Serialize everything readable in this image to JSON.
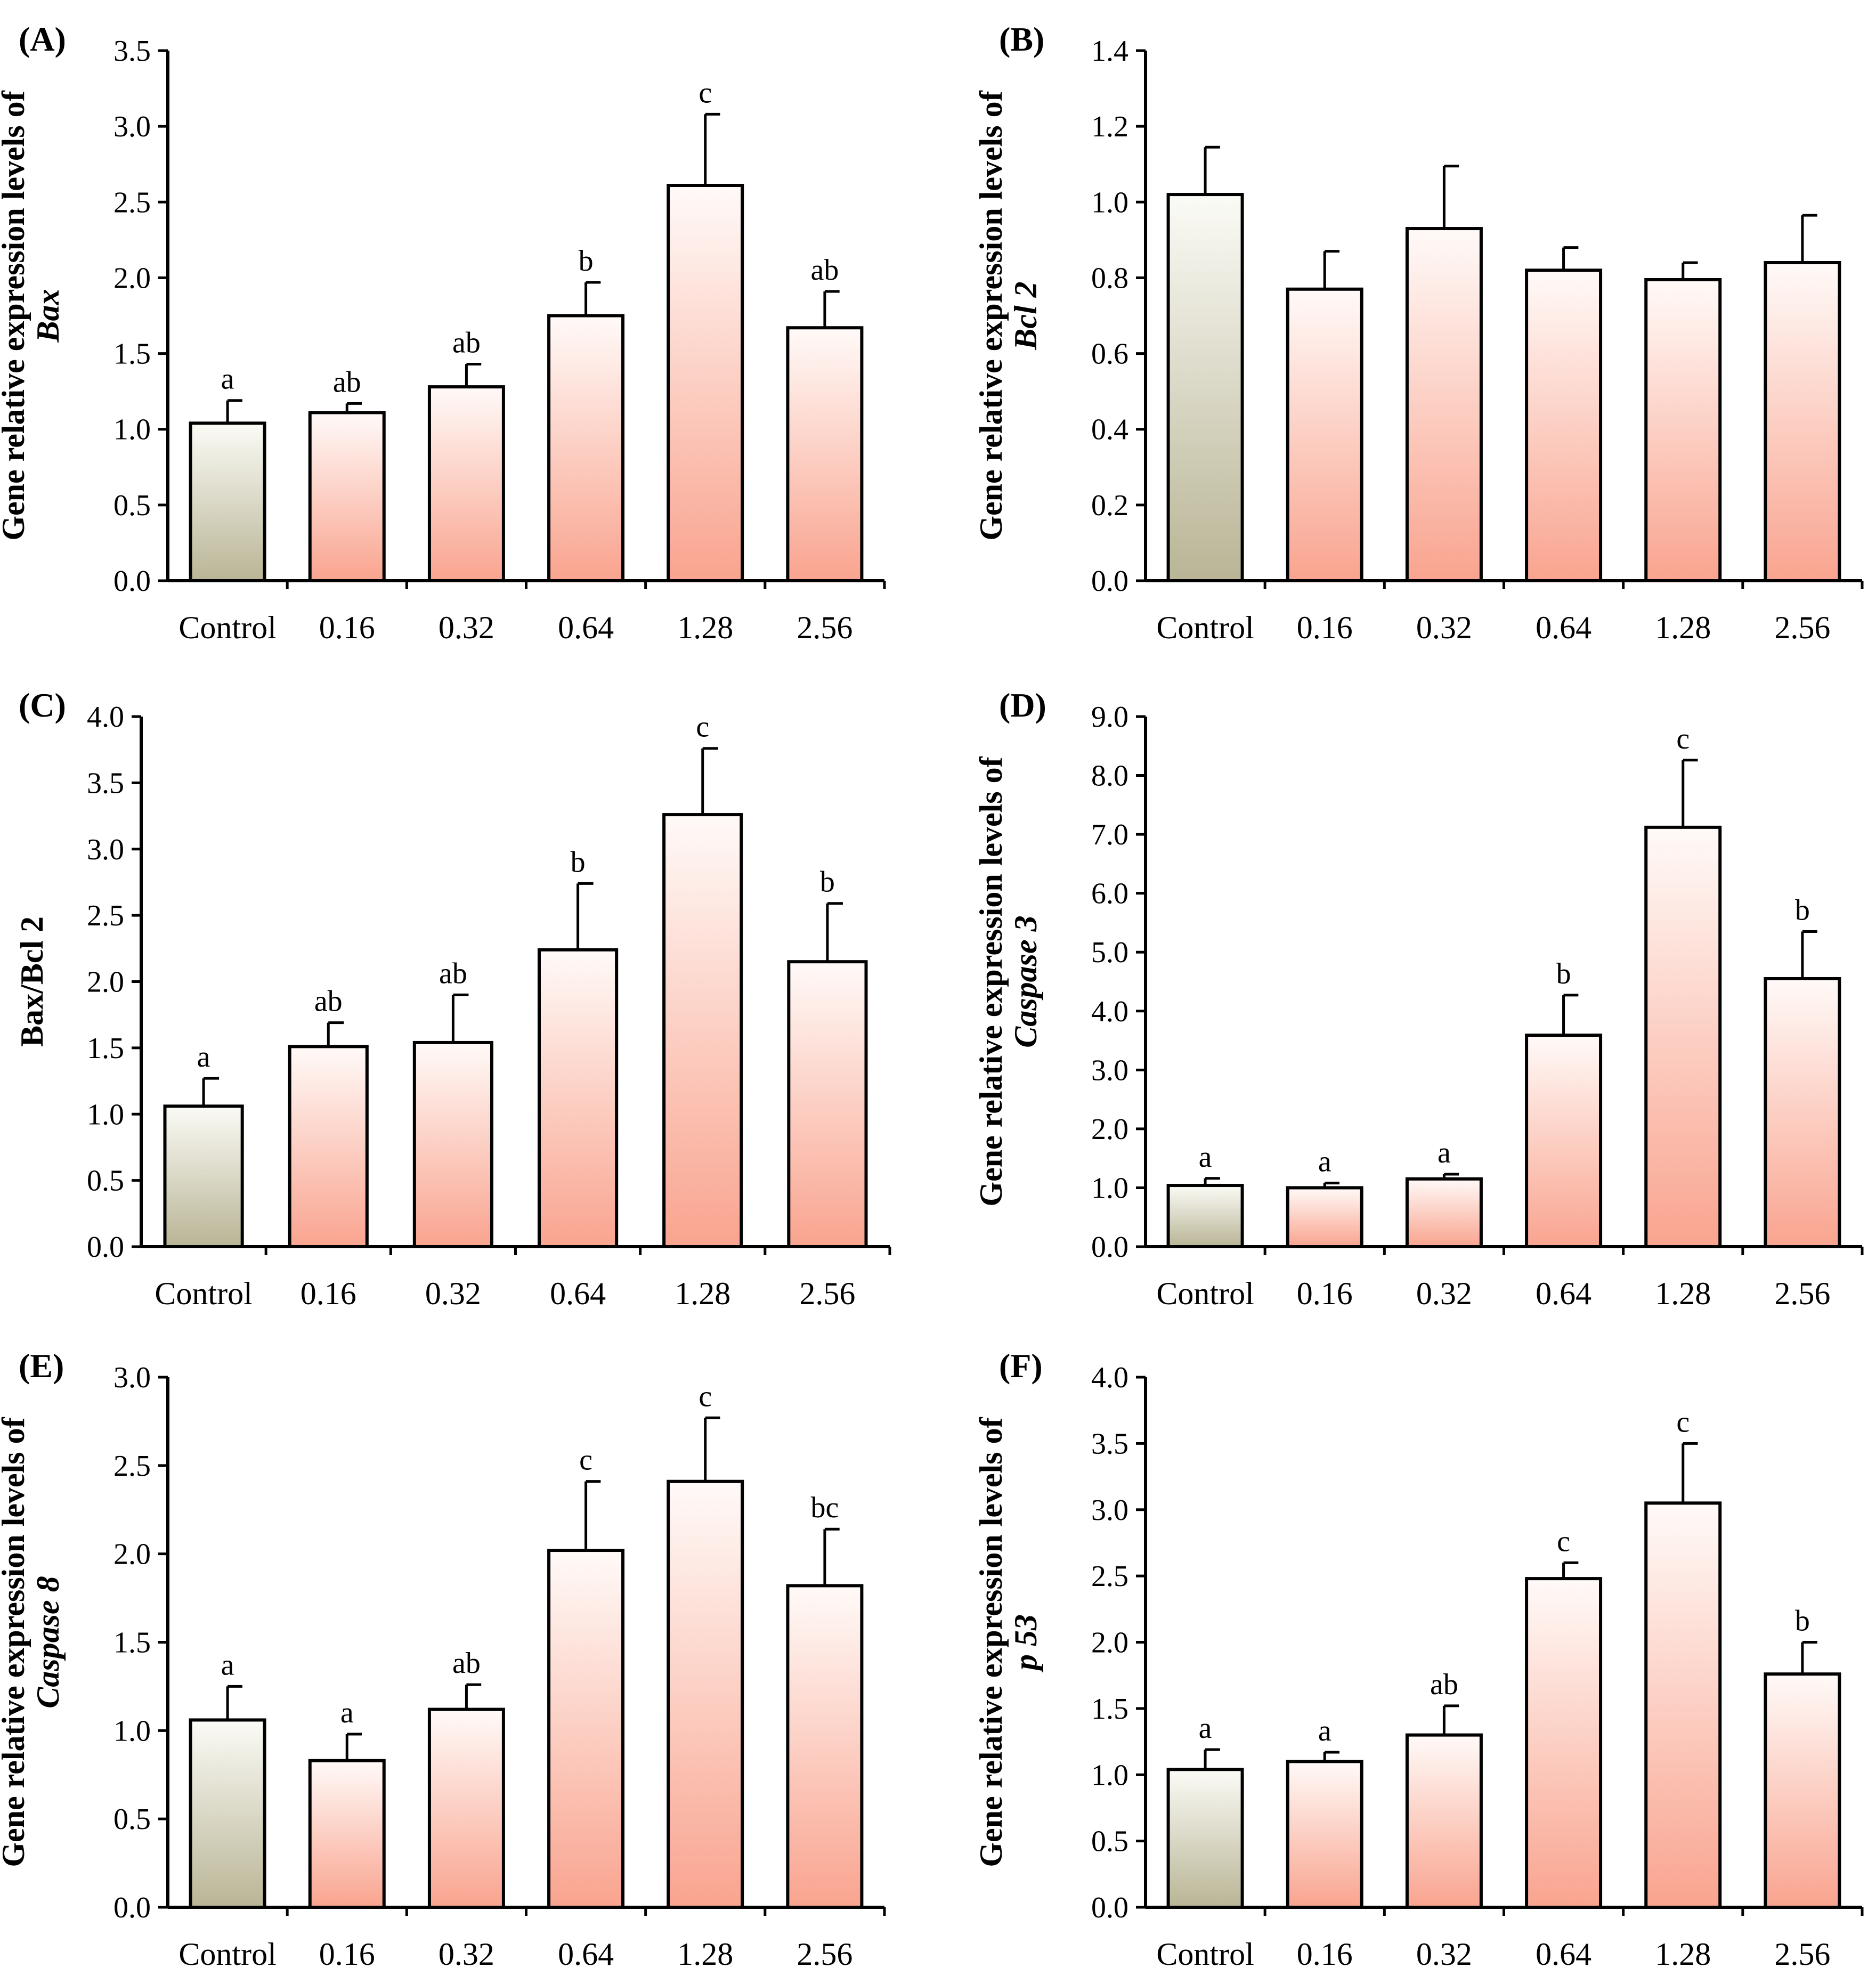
{
  "colors": {
    "control_top": "#fbfbf6",
    "control_bottom": "#b9b596",
    "treat_top": "#fffaf8",
    "treat_bottom": "#f9a48f",
    "stroke": "#000000"
  },
  "chart_data": [
    {
      "type": "bar",
      "panel": "(A)",
      "ylabel": "Gene relative expression levels of",
      "ylabel_gene": "Bax",
      "categories": [
        "Control",
        "0.16",
        "0.32",
        "0.64",
        "1.28",
        "2.56"
      ],
      "values": [
        1.04,
        1.11,
        1.28,
        1.75,
        2.61,
        1.67
      ],
      "errors": [
        0.15,
        0.06,
        0.15,
        0.22,
        0.47,
        0.24
      ],
      "significance": [
        "a",
        "ab",
        "ab",
        "b",
        "c",
        "ab"
      ],
      "ylim": [
        0,
        3.5
      ],
      "ticks": [
        "0.0",
        "0.5",
        "1.0",
        "1.5",
        "2.0",
        "2.5",
        "3.0",
        "3.5"
      ]
    },
    {
      "type": "bar",
      "panel": "(B)",
      "ylabel": "Gene relative expression levels of",
      "ylabel_gene": "Bcl 2",
      "categories": [
        "Control",
        "0.16",
        "0.32",
        "0.64",
        "1.28",
        "2.56"
      ],
      "values": [
        1.02,
        0.77,
        0.93,
        0.82,
        0.795,
        0.84
      ],
      "errors": [
        0.125,
        0.1,
        0.165,
        0.06,
        0.045,
        0.125
      ],
      "significance": [
        "",
        "",
        "",
        "",
        "",
        ""
      ],
      "ylim": [
        0,
        1.4
      ],
      "ticks": [
        "0.0",
        "0.2",
        "0.4",
        "0.6",
        "0.8",
        "1.0",
        "1.2",
        "1.4"
      ]
    },
    {
      "type": "bar",
      "panel": "(C)",
      "ylabel": "Bax/Bcl 2",
      "ylabel_gene": "",
      "categories": [
        "Control",
        "0.16",
        "0.32",
        "0.64",
        "1.28",
        "2.56"
      ],
      "values": [
        1.06,
        1.51,
        1.54,
        2.24,
        3.26,
        2.15
      ],
      "errors": [
        0.21,
        0.18,
        0.36,
        0.5,
        0.5,
        0.44
      ],
      "significance": [
        "a",
        "ab",
        "ab",
        "b",
        "c",
        "b"
      ],
      "ylim": [
        0,
        4.0
      ],
      "ticks": [
        "0.0",
        "0.5",
        "1.0",
        "1.5",
        "2.0",
        "2.5",
        "3.0",
        "3.5",
        "4.0"
      ]
    },
    {
      "type": "bar",
      "panel": "(D)",
      "ylabel": "Gene relative expression levels of",
      "ylabel_gene": "Caspase 3",
      "categories": [
        "Control",
        "0.16",
        "0.32",
        "0.64",
        "1.28",
        "2.56"
      ],
      "values": [
        1.04,
        1.0,
        1.15,
        3.59,
        7.12,
        4.55
      ],
      "errors": [
        0.12,
        0.08,
        0.08,
        0.68,
        1.14,
        0.8
      ],
      "significance": [
        "a",
        "a",
        "a",
        "b",
        "c",
        "b"
      ],
      "ylim": [
        0,
        9.0
      ],
      "ticks": [
        "0.0",
        "1.0",
        "2.0",
        "3.0",
        "4.0",
        "5.0",
        "6.0",
        "7.0",
        "8.0",
        "9.0"
      ]
    },
    {
      "type": "bar",
      "panel": "(E)",
      "ylabel": "Gene relative expression levels of",
      "ylabel_gene": "Caspase 8",
      "categories": [
        "Control",
        "0.16",
        "0.32",
        "0.64",
        "1.28",
        "2.56"
      ],
      "values": [
        1.06,
        0.83,
        1.12,
        2.02,
        2.41,
        1.82
      ],
      "errors": [
        0.19,
        0.15,
        0.14,
        0.39,
        0.36,
        0.32
      ],
      "significance": [
        "a",
        "a",
        "ab",
        "c",
        "c",
        "bc"
      ],
      "ylim": [
        0,
        3.0
      ],
      "ticks": [
        "0.0",
        "0.5",
        "1.0",
        "1.5",
        "2.0",
        "2.5",
        "3.0"
      ]
    },
    {
      "type": "bar",
      "panel": "(F)",
      "ylabel": "Gene relative expression levels of",
      "ylabel_gene": "p 53",
      "categories": [
        "Control",
        "0.16",
        "0.32",
        "0.64",
        "1.28",
        "2.56"
      ],
      "values": [
        1.04,
        1.1,
        1.3,
        2.48,
        3.05,
        1.76
      ],
      "errors": [
        0.15,
        0.07,
        0.22,
        0.12,
        0.45,
        0.24
      ],
      "significance": [
        "a",
        "a",
        "ab",
        "c",
        "c",
        "b"
      ],
      "ylim": [
        0,
        4.0
      ],
      "ticks": [
        "0.0",
        "0.5",
        "1.0",
        "1.5",
        "2.0",
        "2.5",
        "3.0",
        "3.5",
        "4.0"
      ]
    }
  ]
}
